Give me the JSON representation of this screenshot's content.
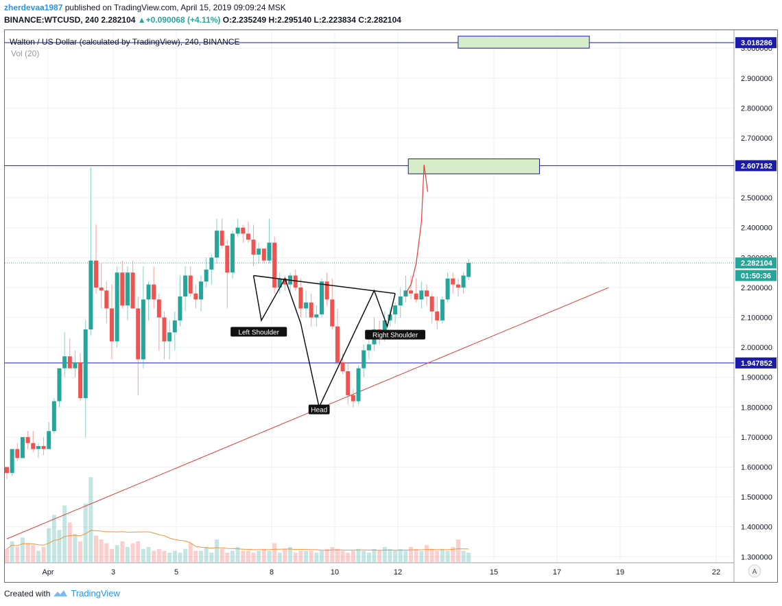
{
  "header": {
    "author": "zherdevaa1987",
    "published_text": "published on TradingView.com, April 15, 2019 09:09:24 MSK",
    "symbol": "BINANCE:WTCUSD, 240",
    "last": "2.282104",
    "change": "+0.090068 (+4.11%)",
    "ohlc": "O:2.235249 H:2.295140 L:2.223834 C:2.282104"
  },
  "legend": {
    "title": "Walton / US Dollar (calculated by TradingView), 240, BINANCE",
    "volume": "Vol (20)"
  },
  "footer": {
    "created_with": "Created with",
    "brand": "TradingView"
  },
  "colors": {
    "up": "#26a69a",
    "down": "#ef5350",
    "level": "#1a1aab",
    "trend": "#e53935",
    "zone_fill": "#d7ecc9",
    "ma": "#f0943a"
  },
  "chart_data": {
    "type": "candlestick",
    "x_ticks": [
      "Apr",
      "3",
      "5",
      "8",
      "10",
      "12",
      "15",
      "17",
      "19",
      "22"
    ],
    "y_ticks": [
      "1.300000",
      "1.400000",
      "1.500000",
      "1.600000",
      "1.700000",
      "1.800000",
      "1.900000",
      "2.000000",
      "2.100000",
      "2.200000",
      "2.300000",
      "2.400000",
      "2.500000",
      "2.600000",
      "2.700000",
      "2.800000",
      "2.900000",
      "3.000000"
    ],
    "ylim": [
      1.28,
      3.06
    ],
    "price_labels": [
      {
        "text": "3.018286",
        "value": 3.018286,
        "style": "level"
      },
      {
        "text": "2.607182",
        "value": 2.607182,
        "style": "level"
      },
      {
        "text": "2.282104",
        "value": 2.282104,
        "style": "last"
      },
      {
        "text": "01:50:36",
        "value": 2.24,
        "style": "timer"
      },
      {
        "text": "1.947852",
        "value": 1.947852,
        "style": "level"
      }
    ],
    "horizontal_levels": [
      3.018286,
      2.607182,
      1.947852
    ],
    "last_price": 2.282104,
    "annotations": [
      {
        "text": "Left Shoulder",
        "bar": 48,
        "price": 2.05
      },
      {
        "text": "Head",
        "bar": 59.5,
        "price": 1.79
      },
      {
        "text": "Right Shoulder",
        "bar": 74,
        "price": 2.04
      }
    ],
    "target_zones": [
      {
        "bar_from": 86,
        "bar_to": 111,
        "low": 3.0,
        "high": 3.04
      },
      {
        "bar_from": 76.5,
        "bar_to": 101.5,
        "low": 2.58,
        "high": 2.63
      }
    ],
    "pattern_lines": [
      [
        [
          47,
          2.24
        ],
        [
          48.5,
          2.09
        ],
        [
          53,
          2.23
        ],
        [
          56,
          2.08
        ],
        [
          59.5,
          1.8
        ],
        [
          70,
          2.19
        ],
        [
          72.5,
          2.07
        ],
        [
          74,
          2.18
        ]
      ],
      [
        [
          47,
          2.24
        ],
        [
          74,
          2.18
        ]
      ]
    ],
    "trendline": [
      [
        0,
        1.36
      ],
      [
        114.7,
        2.2
      ]
    ],
    "projection_path": [
      [
        76,
        2.18
      ],
      [
        77,
        2.21
      ],
      [
        78,
        2.28
      ],
      [
        79,
        2.42
      ],
      [
        79.5,
        2.61
      ],
      [
        80.2,
        2.52
      ]
    ],
    "candles": [
      [
        1.6,
        1.6,
        1.56,
        1.58
      ],
      [
        1.58,
        1.66,
        1.57,
        1.66
      ],
      [
        1.66,
        1.68,
        1.62,
        1.63
      ],
      [
        1.63,
        1.7,
        1.63,
        1.7
      ],
      [
        1.7,
        1.72,
        1.66,
        1.68
      ],
      [
        1.68,
        1.72,
        1.65,
        1.66
      ],
      [
        1.66,
        1.68,
        1.63,
        1.67
      ],
      [
        1.67,
        1.7,
        1.64,
        1.66
      ],
      [
        1.66,
        1.75,
        1.66,
        1.72
      ],
      [
        1.72,
        1.83,
        1.71,
        1.82
      ],
      [
        1.82,
        1.93,
        1.8,
        1.93
      ],
      [
        1.93,
        2.05,
        1.9,
        1.97
      ],
      [
        1.97,
        2.03,
        1.93,
        1.93
      ],
      [
        1.93,
        1.99,
        1.9,
        1.95
      ],
      [
        1.95,
        1.98,
        1.82,
        1.83
      ],
      [
        1.83,
        2.09,
        1.7,
        2.06
      ],
      [
        2.06,
        2.6,
        2.04,
        2.29
      ],
      [
        2.29,
        2.41,
        2.18,
        2.2
      ],
      [
        2.2,
        2.28,
        2.13,
        2.19
      ],
      [
        2.19,
        2.22,
        2.08,
        2.13
      ],
      [
        2.13,
        2.21,
        1.96,
        2.02
      ],
      [
        2.02,
        2.27,
        2.0,
        2.25
      ],
      [
        2.25,
        2.29,
        2.13,
        2.14
      ],
      [
        2.14,
        2.27,
        2.09,
        2.25
      ],
      [
        2.25,
        2.29,
        2.13,
        2.13
      ],
      [
        2.13,
        2.17,
        1.84,
        1.96
      ],
      [
        1.96,
        2.27,
        1.93,
        2.16
      ],
      [
        2.16,
        2.22,
        2.09,
        2.21
      ],
      [
        2.21,
        2.27,
        2.13,
        2.16
      ],
      [
        2.16,
        2.18,
        1.99,
        2.1
      ],
      [
        2.1,
        2.12,
        1.96,
        2.02
      ],
      [
        2.02,
        2.09,
        1.96,
        2.05
      ],
      [
        2.05,
        2.12,
        1.99,
        2.09
      ],
      [
        2.09,
        2.24,
        2.07,
        2.17
      ],
      [
        2.17,
        2.27,
        2.12,
        2.24
      ],
      [
        2.24,
        2.27,
        2.17,
        2.18
      ],
      [
        2.18,
        2.21,
        2.13,
        2.16
      ],
      [
        2.16,
        2.24,
        2.12,
        2.22
      ],
      [
        2.22,
        2.3,
        2.2,
        2.26
      ],
      [
        2.26,
        2.31,
        2.21,
        2.3
      ],
      [
        2.3,
        2.43,
        2.28,
        2.39
      ],
      [
        2.39,
        2.43,
        2.33,
        2.34
      ],
      [
        2.34,
        2.36,
        2.13,
        2.25
      ],
      [
        2.25,
        2.39,
        2.23,
        2.38
      ],
      [
        2.38,
        2.43,
        2.37,
        2.4
      ],
      [
        2.4,
        2.41,
        2.35,
        2.38
      ],
      [
        2.38,
        2.42,
        2.35,
        2.36
      ],
      [
        2.36,
        2.41,
        2.27,
        2.31
      ],
      [
        2.31,
        2.35,
        2.28,
        2.33
      ],
      [
        2.33,
        2.33,
        2.28,
        2.29
      ],
      [
        2.29,
        2.43,
        2.28,
        2.35
      ],
      [
        2.35,
        2.37,
        2.18,
        2.2
      ],
      [
        2.2,
        2.25,
        2.18,
        2.23
      ],
      [
        2.23,
        2.24,
        2.19,
        2.21
      ],
      [
        2.21,
        2.25,
        2.18,
        2.24
      ],
      [
        2.24,
        2.26,
        2.19,
        2.2
      ],
      [
        2.2,
        2.23,
        2.1,
        2.13
      ],
      [
        2.13,
        2.19,
        2.1,
        2.15
      ],
      [
        2.15,
        2.18,
        2.07,
        2.1
      ],
      [
        2.1,
        2.14,
        2.07,
        2.11
      ],
      [
        2.11,
        2.23,
        2.1,
        2.22
      ],
      [
        2.22,
        2.25,
        2.14,
        2.16
      ],
      [
        2.16,
        2.23,
        2.06,
        2.07
      ],
      [
        2.07,
        2.13,
        1.94,
        1.95
      ],
      [
        1.95,
        1.98,
        1.91,
        1.92
      ],
      [
        1.92,
        1.95,
        1.81,
        1.84
      ],
      [
        1.84,
        1.86,
        1.8,
        1.82
      ],
      [
        1.82,
        1.94,
        1.81,
        1.93
      ],
      [
        1.93,
        2.01,
        1.9,
        1.99
      ],
      [
        1.99,
        2.04,
        1.96,
        2.01
      ],
      [
        2.01,
        2.1,
        1.99,
        2.06
      ],
      [
        2.06,
        2.09,
        2.01,
        2.05
      ],
      [
        2.05,
        2.12,
        2.02,
        2.09
      ],
      [
        2.09,
        2.13,
        2.07,
        2.11
      ],
      [
        2.11,
        2.15,
        2.08,
        2.14
      ],
      [
        2.14,
        2.2,
        2.1,
        2.17
      ],
      [
        2.17,
        2.24,
        2.15,
        2.19
      ],
      [
        2.19,
        2.24,
        2.16,
        2.18
      ],
      [
        2.18,
        2.23,
        2.15,
        2.16
      ],
      [
        2.16,
        2.22,
        2.13,
        2.19
      ],
      [
        2.19,
        2.21,
        2.14,
        2.17
      ],
      [
        2.17,
        2.18,
        2.08,
        2.12
      ],
      [
        2.12,
        2.17,
        2.06,
        2.09
      ],
      [
        2.09,
        2.17,
        2.08,
        2.16
      ],
      [
        2.16,
        2.25,
        2.15,
        2.23
      ],
      [
        2.23,
        2.25,
        2.18,
        2.21
      ],
      [
        2.21,
        2.23,
        2.17,
        2.2
      ],
      [
        2.2,
        2.25,
        2.18,
        2.24
      ],
      [
        2.235249,
        2.29514,
        2.223834,
        2.282104
      ]
    ],
    "volume": [
      0.35,
      0.55,
      0.4,
      0.65,
      0.5,
      0.45,
      0.3,
      0.4,
      0.9,
      1.25,
      0.85,
      1.5,
      1.05,
      0.75,
      0.55,
      1.55,
      2.25,
      0.7,
      0.6,
      0.5,
      0.35,
      0.45,
      0.55,
      0.4,
      0.5,
      0.55,
      0.35,
      0.4,
      0.3,
      0.35,
      0.3,
      0.25,
      0.3,
      0.25,
      0.35,
      0.5,
      0.3,
      0.3,
      0.4,
      0.25,
      0.6,
      0.35,
      0.25,
      0.3,
      0.4,
      0.3,
      0.3,
      0.25,
      0.3,
      0.35,
      0.3,
      0.5,
      0.25,
      0.35,
      0.4,
      0.25,
      0.3,
      0.3,
      0.3,
      0.25,
      0.3,
      0.35,
      0.4,
      0.35,
      0.3,
      0.25,
      0.3,
      0.35,
      0.3,
      0.25,
      0.35,
      0.3,
      0.4,
      0.35,
      0.3,
      0.35,
      0.3,
      0.4,
      0.35,
      0.3,
      0.45,
      0.35,
      0.3,
      0.35,
      0.3,
      0.4,
      0.6,
      0.3,
      0.25
    ]
  }
}
